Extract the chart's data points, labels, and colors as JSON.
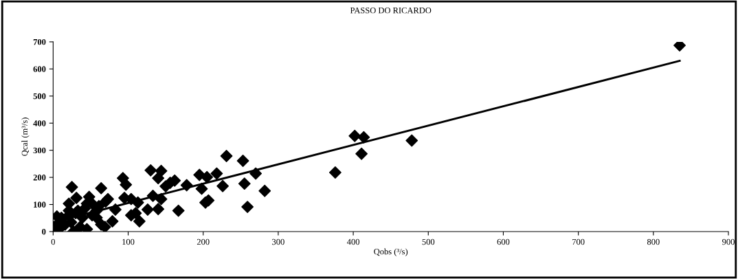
{
  "chart_data": {
    "type": "scatter",
    "title": "PASSO DO RICARDO",
    "xlabel": "Qobs (³/s)",
    "ylabel": "Qcal (m³/s)",
    "xlim": [
      0,
      900
    ],
    "ylim": [
      0,
      700
    ],
    "xticks": [
      0,
      100,
      200,
      300,
      400,
      500,
      600,
      700,
      800,
      900
    ],
    "yticks": [
      0,
      100,
      200,
      300,
      400,
      500,
      600,
      700
    ],
    "grid": false,
    "legend": false,
    "marker": "diamond",
    "series": [
      {
        "color": "#000000",
        "x": [
          25,
          31,
          21,
          48,
          64,
          93,
          97,
          130,
          144,
          140,
          150,
          156,
          162,
          178,
          195,
          198,
          205,
          218,
          226,
          231,
          253,
          255,
          259,
          270,
          282,
          207,
          203,
          167,
          115,
          110,
          104,
          126,
          140,
          144,
          133,
          95,
          104,
          113,
          83,
          79,
          70,
          73,
          64,
          69,
          45,
          58,
          52,
          42,
          33,
          21,
          11,
          5,
          2,
          8,
          16,
          27,
          36,
          24,
          39,
          30,
          52,
          58,
          7,
          21,
          45,
          61,
          835,
          478,
          402,
          414,
          411,
          376
        ],
        "values": [
          164,
          124,
          103,
          128,
          160,
          197,
          173,
          226,
          224,
          197,
          167,
          180,
          188,
          171,
          209,
          158,
          201,
          214,
          168,
          279,
          261,
          177,
          91,
          214,
          150,
          115,
          107,
          77,
          38,
          68,
          60,
          81,
          83,
          120,
          132,
          124,
          120,
          107,
          81,
          38,
          111,
          120,
          26,
          17,
          9,
          77,
          103,
          85,
          77,
          60,
          51,
          56,
          17,
          9,
          26,
          0,
          17,
          34,
          51,
          68,
          60,
          51,
          26,
          77,
          103,
          94,
          687,
          336,
          353,
          348,
          287,
          218
        ]
      },
      {
        "type": "line",
        "color": "#000000",
        "marker": "none",
        "line_style": "solid",
        "x": [
          0,
          835
        ],
        "values": [
          34,
          630
        ]
      }
    ]
  }
}
